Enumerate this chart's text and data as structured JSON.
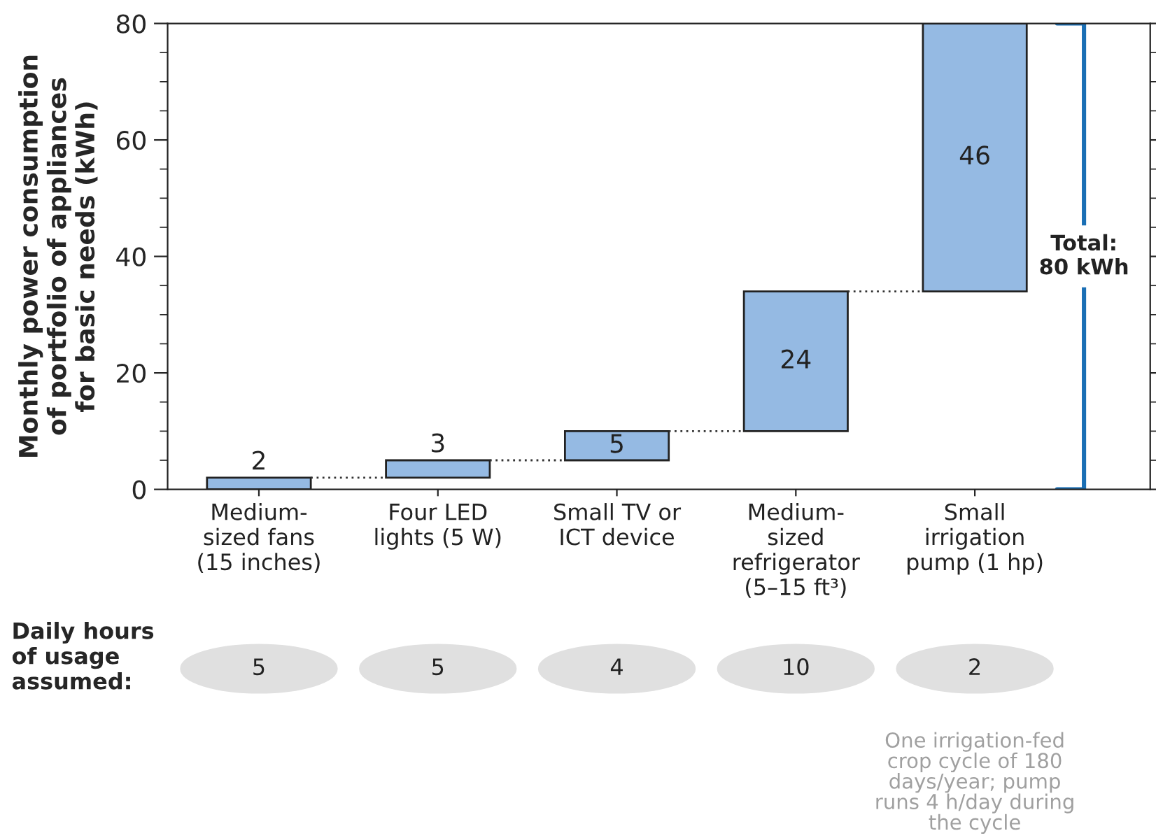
{
  "chart_data": {
    "type": "bar",
    "ylabel": "Monthly power consumption\nof portfolio of appliances\nfor basic needs (kWh)",
    "categories": [
      "Medium-\nsized fans\n(15 inches)",
      "Four LED\nlights (5 W)",
      "Small TV or\nICT device",
      "Medium-\nsized\nrefrigerator\n(5–15 ft³)",
      "Small\nirrigation\npump (1 hp)"
    ],
    "values": [
      2,
      3,
      5,
      24,
      46
    ],
    "base": [
      0,
      2,
      5,
      10,
      34
    ],
    "color": "#95bae3",
    "data_labels": true,
    "ylim": [
      0,
      80
    ],
    "yticks": [
      0,
      20,
      40,
      60,
      80
    ],
    "grid": false,
    "legend": false,
    "annotations": [
      "Daily hours\nof usage\nassumed:",
      "5",
      "5",
      "4",
      "10",
      "2",
      "One irrigation-fed\ncrop cycle of 180\ndays/year; pump\nruns 4 h/day during\nthe cycle",
      "Total:\n80 kWh"
    ]
  }
}
